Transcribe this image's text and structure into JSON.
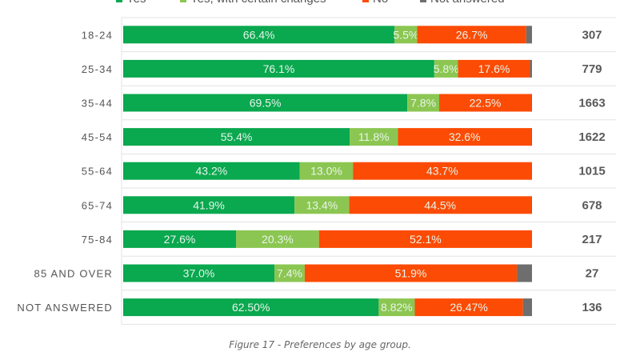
{
  "chart_data": {
    "type": "bar",
    "orientation": "horizontal",
    "stacked": true,
    "percent": true,
    "title": "",
    "xlabel": "",
    "ylabel": "",
    "xlim": [
      0,
      100
    ],
    "grid": "horizontal separators",
    "legend_position": "top",
    "categories": [
      "18-24",
      "25-34",
      "35-44",
      "45-54",
      "55-64",
      "65-74",
      "75-84",
      "85 AND OVER",
      "NOT ANSWERED"
    ],
    "series": [
      {
        "name": "Yes",
        "color": "#0aa84f",
        "values": [
          66.4,
          76.1,
          69.5,
          55.4,
          43.2,
          41.9,
          27.6,
          37.0,
          62.5
        ],
        "labels": [
          "66.4%",
          "76.1%",
          "69.5%",
          "55.4%",
          "43.2%",
          "41.9%",
          "27.6%",
          "37.0%",
          "62.50%"
        ]
      },
      {
        "name": "Yes, with certain changes",
        "color": "#8cc652",
        "values": [
          5.5,
          5.8,
          7.8,
          11.8,
          13.0,
          13.4,
          20.3,
          7.4,
          8.82
        ],
        "labels": [
          "5.5%",
          "5.8%",
          "7.8%",
          "11.8%",
          "13.0%",
          "13.4%",
          "20.3%",
          "7.4%",
          "8.82%"
        ]
      },
      {
        "name": "No",
        "color": "#fc4b04",
        "values": [
          26.7,
          17.6,
          22.5,
          32.6,
          43.7,
          44.5,
          52.1,
          51.9,
          26.47
        ],
        "labels": [
          "26.7%",
          "17.6%",
          "22.5%",
          "32.6%",
          "43.7%",
          "44.5%",
          "52.1%",
          "51.9%",
          "26.47%"
        ]
      },
      {
        "name": "Not answered",
        "color": "#6e6e6e",
        "values": [
          1.4,
          0.5,
          0.2,
          0.2,
          0.1,
          0.2,
          0.0,
          3.7,
          2.21
        ],
        "labels": [
          "",
          "",
          "",
          "",
          "",
          "",
          "",
          "",
          ""
        ]
      }
    ],
    "counts": [
      307,
      779,
      1663,
      1622,
      1015,
      678,
      217,
      27,
      136
    ]
  },
  "caption": "Figure 17 - Preferences by age group."
}
